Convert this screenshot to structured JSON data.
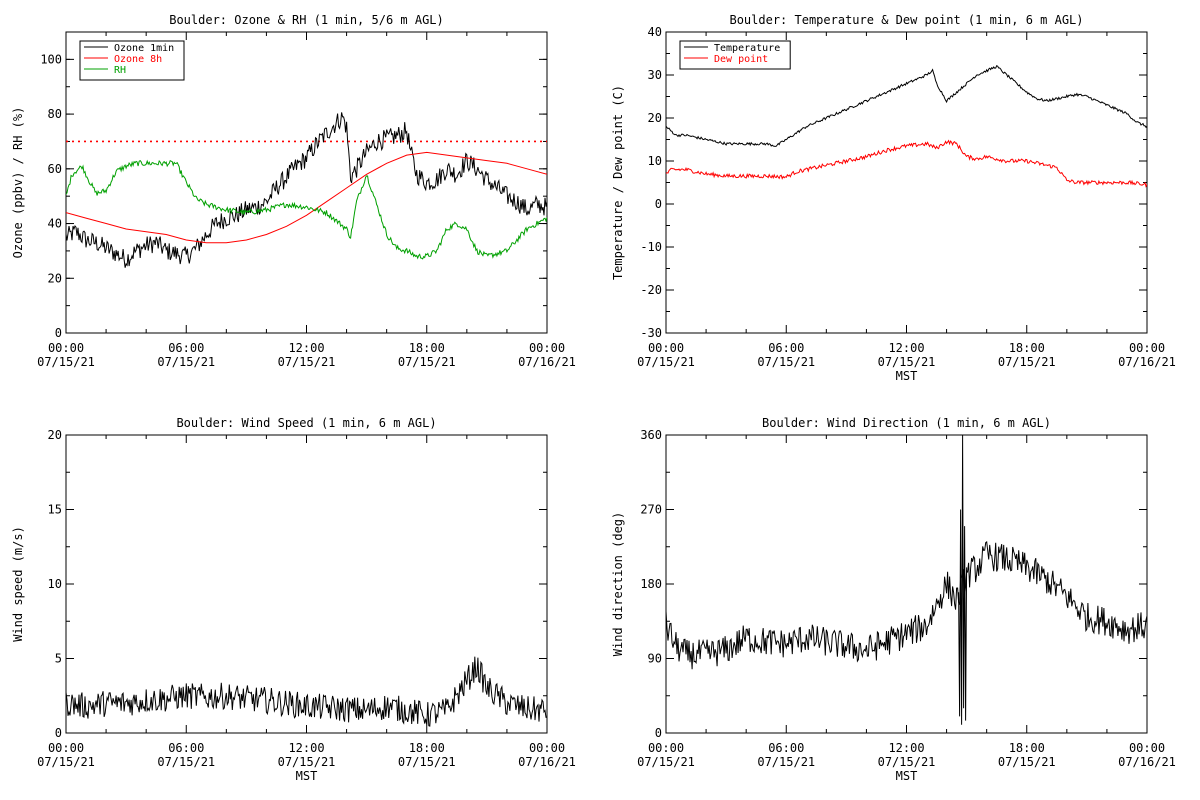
{
  "chart_data": [
    {
      "type": "line",
      "title": "Boulder: Ozone & RH (1 min, 5/6 m AGL)",
      "xlabel": "",
      "ylabel": "Ozone (ppbv) / RH (%)",
      "xlim": [
        0,
        24
      ],
      "ylim": [
        0,
        110
      ],
      "x_ticks": [
        {
          "h": 0,
          "time": "00:00",
          "date": "07/15/21"
        },
        {
          "h": 6,
          "time": "06:00",
          "date": "07/15/21"
        },
        {
          "h": 12,
          "time": "12:00",
          "date": "07/15/21"
        },
        {
          "h": 18,
          "time": "18:00",
          "date": "07/15/21"
        },
        {
          "h": 24,
          "time": "00:00",
          "date": "07/16/21"
        }
      ],
      "y_ticks": [
        0,
        20,
        40,
        60,
        80,
        100
      ],
      "hline": {
        "value": 70,
        "color": "#ff0000",
        "style": "dotted"
      },
      "legend": {
        "position": "top-left",
        "entries": [
          {
            "label": "Ozone 1min",
            "color": "#000000"
          },
          {
            "label": "Ozone 8h",
            "color": "#ff0000"
          },
          {
            "label": "RH",
            "color": "#00a000"
          }
        ]
      },
      "series": [
        {
          "name": "Ozone 1min",
          "color": "#000000",
          "noise": 3.5,
          "x": [
            0,
            0.5,
            1,
            1.5,
            2,
            2.5,
            3,
            3.5,
            4,
            4.5,
            5,
            5.5,
            6,
            6.5,
            7,
            7.5,
            8,
            8.5,
            9,
            9.5,
            10,
            10.5,
            11,
            11.5,
            12,
            12.5,
            13,
            13.5,
            13.8,
            14,
            14.2,
            14.5,
            15,
            15.5,
            16,
            16.5,
            17,
            17.2,
            17.5,
            18,
            18.5,
            19,
            19.5,
            20,
            20.5,
            21,
            21.5,
            22,
            22.5,
            23,
            23.5,
            24
          ],
          "y": [
            35,
            37,
            34,
            33,
            31,
            29,
            27,
            30,
            32,
            33,
            30,
            29,
            28,
            31,
            36,
            40,
            42,
            43,
            45,
            46,
            48,
            53,
            57,
            61,
            64,
            69,
            73,
            77,
            79,
            75,
            57,
            60,
            66,
            70,
            71,
            72,
            74,
            66,
            58,
            55,
            56,
            60,
            58,
            63,
            60,
            56,
            53,
            50,
            48,
            45,
            47,
            46
          ]
        },
        {
          "name": "Ozone 8h",
          "color": "#ff0000",
          "noise": 0,
          "x": [
            0,
            1,
            2,
            3,
            4,
            5,
            6,
            7,
            8,
            9,
            10,
            11,
            12,
            13,
            14,
            15,
            16,
            17,
            18,
            19,
            20,
            21,
            22,
            23,
            24
          ],
          "y": [
            44,
            42,
            40,
            38,
            37,
            36,
            34,
            33,
            33,
            34,
            36,
            39,
            43,
            48,
            53,
            58,
            62,
            65,
            66,
            65,
            64,
            63,
            62,
            60,
            58
          ]
        },
        {
          "name": "RH",
          "color": "#00a000",
          "noise": 1.0,
          "x": [
            0,
            0.3,
            0.8,
            1.2,
            1.5,
            2,
            2.5,
            3,
            3.5,
            4,
            4.5,
            5,
            5.5,
            6,
            6.5,
            7,
            7.5,
            8,
            9,
            10,
            10.5,
            11,
            12,
            12.5,
            13,
            13.5,
            14,
            14.2,
            14.5,
            15,
            15.5,
            16,
            16.5,
            17,
            17.5,
            18,
            18.5,
            19,
            19.5,
            20,
            20.5,
            21,
            21.5,
            22,
            22.5,
            23,
            23.5,
            24
          ],
          "y": [
            50,
            58,
            61,
            55,
            51,
            52,
            59,
            61,
            62,
            62,
            62,
            62,
            62,
            55,
            49,
            47,
            46,
            45,
            44,
            45,
            46,
            47,
            46,
            45,
            44,
            41,
            38,
            35,
            48,
            58,
            47,
            36,
            31,
            30,
            28,
            28,
            30,
            38,
            40,
            38,
            30,
            28,
            29,
            30,
            34,
            38,
            40,
            42
          ]
        }
      ]
    },
    {
      "type": "line",
      "title": "Boulder: Temperature & Dew point (1 min, 6 m AGL)",
      "xlabel": "MST",
      "ylabel": "Temperature / Dew point (C)",
      "xlim": [
        0,
        24
      ],
      "ylim": [
        -30,
        40
      ],
      "x_ticks": [
        {
          "h": 0,
          "time": "00:00",
          "date": "07/15/21"
        },
        {
          "h": 6,
          "time": "06:00",
          "date": "07/15/21"
        },
        {
          "h": 12,
          "time": "12:00",
          "date": "07/15/21"
        },
        {
          "h": 18,
          "time": "18:00",
          "date": "07/15/21"
        },
        {
          "h": 24,
          "time": "00:00",
          "date": "07/16/21"
        }
      ],
      "y_ticks": [
        -30,
        -20,
        -10,
        0,
        10,
        20,
        30,
        40
      ],
      "legend": {
        "position": "top-left",
        "entries": [
          {
            "label": "Temperature",
            "color": "#000000"
          },
          {
            "label": "Dew point",
            "color": "#ff0000"
          }
        ]
      },
      "series": [
        {
          "name": "Temperature",
          "color": "#000000",
          "noise": 0.3,
          "x": [
            0,
            0.5,
            1,
            2,
            3,
            4,
            5,
            5.5,
            6,
            7,
            8,
            9,
            10,
            11,
            12,
            12.5,
            13,
            13.3,
            13.5,
            14,
            14.5,
            15,
            15.5,
            16,
            16.5,
            17,
            17.5,
            18,
            18.5,
            19,
            20,
            20.5,
            21,
            22,
            23,
            23.5,
            24
          ],
          "y": [
            18,
            16,
            16,
            15,
            14,
            14,
            14,
            13.5,
            15,
            18,
            20,
            22,
            24,
            26,
            28,
            29,
            30,
            31,
            28,
            24,
            26,
            28,
            30,
            31,
            32,
            30,
            28,
            26,
            24.5,
            24,
            25,
            25.5,
            25,
            23,
            21,
            19,
            18
          ]
        },
        {
          "name": "Dew point",
          "color": "#ff0000",
          "noise": 0.45,
          "x": [
            0,
            0.3,
            1,
            2,
            3,
            4,
            5,
            6,
            6.5,
            7,
            8,
            9,
            10,
            11,
            12,
            13,
            13.5,
            14,
            14.5,
            15,
            15.5,
            16,
            17,
            18,
            18.5,
            19,
            19.5,
            20,
            20.5,
            21,
            22,
            23,
            24
          ],
          "y": [
            7,
            8,
            8,
            7,
            6.5,
            6.5,
            6.5,
            6.3,
            7.5,
            8,
            9,
            10,
            11,
            12.5,
            13.5,
            14,
            13,
            14.5,
            14,
            11,
            10.5,
            11,
            10,
            10,
            9.5,
            9,
            8.5,
            5.5,
            5,
            5,
            5,
            5,
            4.5
          ]
        }
      ]
    },
    {
      "type": "line",
      "title": "Boulder: Wind Speed (1 min, 6 m AGL)",
      "xlabel": "MST",
      "ylabel": "Wind speed (m/s)",
      "xlim": [
        0,
        24
      ],
      "ylim": [
        0,
        20
      ],
      "x_ticks": [
        {
          "h": 0,
          "time": "00:00",
          "date": "07/15/21"
        },
        {
          "h": 6,
          "time": "06:00",
          "date": "07/15/21"
        },
        {
          "h": 12,
          "time": "12:00",
          "date": "07/15/21"
        },
        {
          "h": 18,
          "time": "18:00",
          "date": "07/15/21"
        },
        {
          "h": 24,
          "time": "00:00",
          "date": "07/16/21"
        }
      ],
      "y_ticks": [
        0,
        5,
        10,
        15,
        20
      ],
      "series": [
        {
          "name": "",
          "color": "#000000",
          "noise": 0.9,
          "x": [
            0,
            1,
            2,
            3,
            4,
            5,
            6,
            7,
            8,
            9,
            10,
            11,
            12,
            13,
            14,
            15,
            16,
            17,
            18,
            19,
            19.5,
            20,
            20.5,
            21,
            22,
            23,
            24
          ],
          "y": [
            2,
            1.8,
            2,
            2,
            2.2,
            2.3,
            2.5,
            2.4,
            2.5,
            2.3,
            2.2,
            2,
            1.8,
            1.7,
            1.6,
            1.5,
            1.8,
            1.5,
            1.2,
            1.5,
            2.5,
            3.5,
            4.5,
            3,
            2,
            1.6,
            1.5
          ]
        }
      ]
    },
    {
      "type": "line",
      "title": "Boulder: Wind Direction (1 min, 6 m AGL)",
      "xlabel": "MST",
      "ylabel": "Wind direction (deg)",
      "xlim": [
        0,
        24
      ],
      "ylim": [
        0,
        360
      ],
      "x_ticks": [
        {
          "h": 0,
          "time": "00:00",
          "date": "07/15/21"
        },
        {
          "h": 6,
          "time": "06:00",
          "date": "07/15/21"
        },
        {
          "h": 12,
          "time": "12:00",
          "date": "07/15/21"
        },
        {
          "h": 18,
          "time": "18:00",
          "date": "07/15/21"
        },
        {
          "h": 24,
          "time": "00:00",
          "date": "07/16/21"
        }
      ],
      "y_ticks": [
        0,
        90,
        180,
        270,
        360
      ],
      "series": [
        {
          "name": "",
          "color": "#000000",
          "noise": 18,
          "x": [
            0,
            0.5,
            1,
            2,
            3,
            4,
            5,
            6,
            7,
            8,
            9,
            10,
            11,
            12,
            13,
            14,
            14.5,
            15,
            15.5,
            16,
            17,
            18,
            19,
            20,
            21,
            22,
            23,
            24
          ],
          "y": [
            130,
            105,
            95,
            95,
            100,
            115,
            110,
            108,
            115,
            110,
            105,
            100,
            110,
            120,
            130,
            180,
            160,
            190,
            200,
            215,
            210,
            200,
            185,
            165,
            140,
            135,
            125,
            130
          ]
        },
        {
          "name": "",
          "color": "#000000",
          "noise": 0,
          "x": [
            14.6,
            14.65,
            14.7,
            14.75,
            14.8,
            14.85,
            14.9,
            14.95,
            15.0
          ],
          "y": [
            170,
            20,
            270,
            10,
            360,
            30,
            250,
            15,
            200
          ]
        }
      ]
    }
  ]
}
